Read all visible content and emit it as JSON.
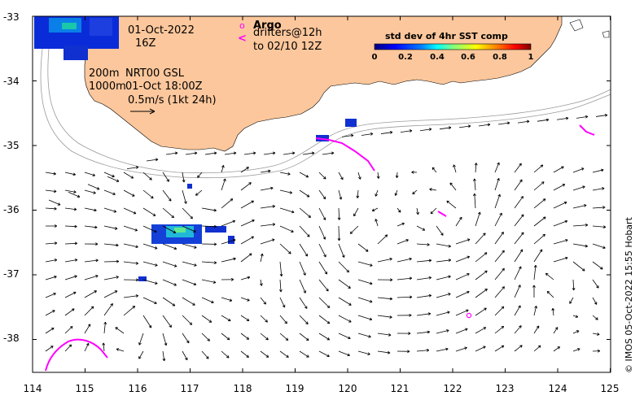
{
  "map": {
    "lon_range": [
      114,
      125
    ],
    "lat_range": [
      -38.5,
      -33
    ],
    "x_ticks": [
      "114",
      "115",
      "116",
      "117",
      "118",
      "119",
      "120",
      "121",
      "122",
      "123",
      "124",
      "125"
    ],
    "y_ticks": [
      "-33",
      "-34",
      "-35",
      "-36",
      "-37",
      "-38"
    ],
    "land_color": "#fcc79c",
    "isobath_color": "#9a9a9a",
    "arrow_color": "#000000",
    "drifter_color": "#ff00ff"
  },
  "labels": {
    "date": "01-Oct-2022",
    "hour": "16Z",
    "depth_1": "200m",
    "depth_2": "1000m",
    "product": "NRT00 GSL",
    "product_time": "01-Oct 18:00Z",
    "scale": "0.5m/s (1kt 24h)",
    "argo_marker": "o",
    "argo": "Argo",
    "drifters_marker": "<",
    "drifters": "drifters@12h",
    "drifters_time": "to 02/10 12Z",
    "credit": "© IMOS 05-Oct-2022 15:55 Hobart"
  },
  "colorbar": {
    "title": "std dev of 4hr SST comp",
    "ticks": [
      "0",
      "0.2",
      "0.4",
      "0.6",
      "0.8",
      "1"
    ],
    "colors": [
      "#00007f",
      "#0000ff",
      "#0080ff",
      "#00ffff",
      "#80ff80",
      "#ffff00",
      "#ff8000",
      "#ff0000",
      "#7f0000"
    ]
  }
}
